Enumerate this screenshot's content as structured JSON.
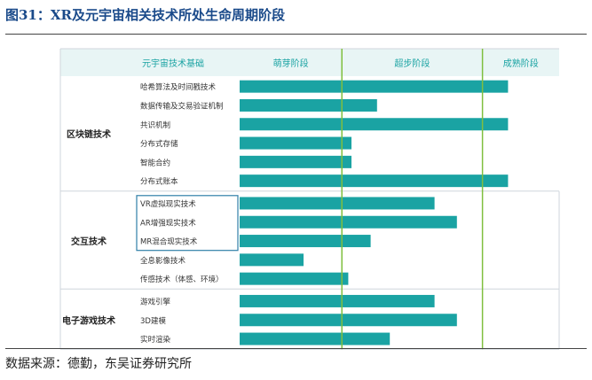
{
  "figure": {
    "title": "图31：XR及元宇宙相关技术所处生命周期阶段",
    "source": "数据来源：德勤，东吴证券研究所"
  },
  "colors": {
    "bar": "#1aa3a3",
    "header_band": "#e8f5f5",
    "header_text": "#1aa3a3",
    "phase_line": "#7fbf3f",
    "border": "#cfd6dc",
    "box": "#2f7fa8"
  },
  "chart_data": {
    "type": "bar",
    "orientation": "horizontal",
    "title": "",
    "xlabel": "",
    "ylabel": "",
    "header": {
      "category_column": "元宇宙技术基础",
      "phases": [
        "萌芽阶段",
        "超步阶段",
        "成熟阶段"
      ]
    },
    "groups": [
      {
        "name": "区块链技术",
        "items": [
          {
            "label": "哈希算法及时间戳技术",
            "value": 0.84
          },
          {
            "label": "数据传输及交易验证机制",
            "value": 0.43
          },
          {
            "label": "共识机制",
            "value": 0.84
          },
          {
            "label": "分布式存储",
            "value": 0.35
          },
          {
            "label": "智能合约",
            "value": 0.35
          },
          {
            "label": "分布式账本",
            "value": 0.84
          }
        ]
      },
      {
        "name": "交互技术",
        "items": [
          {
            "label": "VR虚拟现实技术",
            "value": 0.61
          },
          {
            "label": "AR增强现实技术",
            "value": 0.68
          },
          {
            "label": "MR混合现实技术",
            "value": 0.41
          },
          {
            "label": "全息影像技术",
            "value": 0.2
          },
          {
            "label": "传感技术（体感、环境）",
            "value": 0.34
          }
        ]
      },
      {
        "name": "电子游戏技术",
        "items": [
          {
            "label": "游戏引擎",
            "value": 0.61
          },
          {
            "label": "3D建模",
            "value": 0.68
          },
          {
            "label": "实时渲染",
            "value": 0.47
          }
        ]
      }
    ],
    "phase_boundaries": [
      0.32,
      0.76
    ],
    "xlim": [
      0,
      1
    ],
    "grid": false,
    "legend": "none"
  }
}
